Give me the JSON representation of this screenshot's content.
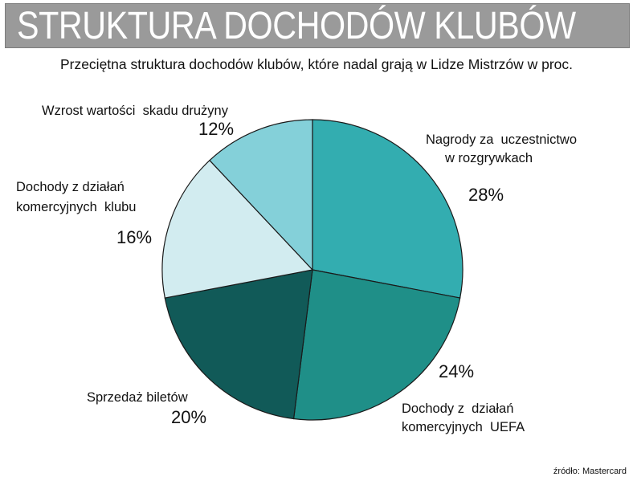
{
  "header": {
    "title": "STRUKTURA DOCHODÓW KLUBÓW",
    "subtitle": "Przeciętna struktura dochodów klubów, które nadal grają w Lidze Mistrzów w proc."
  },
  "source": "źródło: Mastercard",
  "chart_data": {
    "type": "pie",
    "start": "12 o'clock",
    "direction": "clockwise",
    "slices": [
      {
        "lines": [
          "Nagrody za  uczestnictwo",
          "w rozgrywkach"
        ],
        "percent_label": "28%",
        "value": 28,
        "color": "#33adb0"
      },
      {
        "lines": [
          "Dochody z  działań",
          "komercyjnych  UEFA"
        ],
        "percent_label": "24%",
        "value": 24,
        "color": "#1f8f88"
      },
      {
        "lines": [
          "Sprzedaż biletów"
        ],
        "percent_label": "20%",
        "value": 20,
        "color": "#115a58"
      },
      {
        "lines": [
          "Dochody z działań",
          "komercyjnych  klubu"
        ],
        "percent_label": "16%",
        "value": 16,
        "color": "#d2ecf0"
      },
      {
        "lines": [
          "Wzrost wartości  skadu drużyny"
        ],
        "percent_label": "12%",
        "value": 12,
        "color": "#84d0d9"
      }
    ]
  }
}
